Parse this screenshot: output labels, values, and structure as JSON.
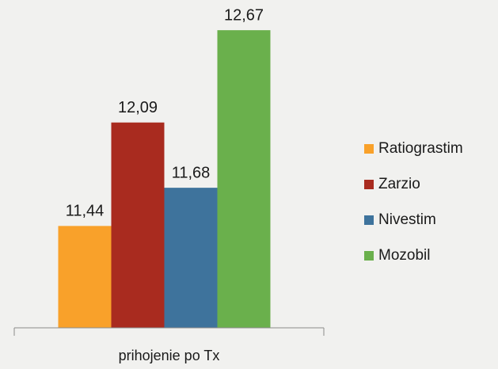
{
  "chart_data": {
    "type": "bar",
    "categories": [
      "prihojenie po Tx"
    ],
    "series": [
      {
        "name": "Ratiograstim",
        "color": "#f9a12a",
        "values": [
          11.44
        ],
        "value_labels": [
          "11,44"
        ]
      },
      {
        "name": "Zarzio",
        "color": "#a92b1f",
        "values": [
          12.09
        ],
        "value_labels": [
          "12,09"
        ]
      },
      {
        "name": "Nivestim",
        "color": "#3e739c",
        "values": [
          11.68
        ],
        "value_labels": [
          "11,68"
        ]
      },
      {
        "name": "Mozobil",
        "color": "#6ab04c",
        "values": [
          12.67
        ],
        "value_labels": [
          "12,67"
        ]
      }
    ],
    "ylim": [
      10.8,
      12.8
    ],
    "legend": "right"
  }
}
